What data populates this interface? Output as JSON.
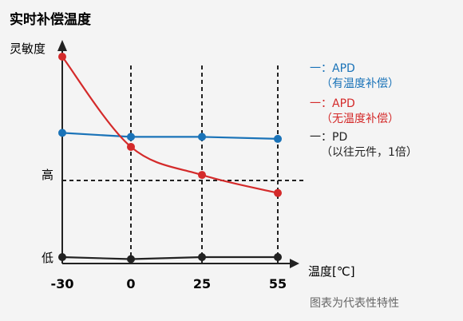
{
  "chart_data": {
    "type": "line",
    "title": "实时补偿温度",
    "ylabel": "灵敏度",
    "xlabel": "温度[℃]",
    "x": [
      "-30",
      "0",
      "25",
      "55"
    ],
    "y_tick_labels": [
      "高",
      "低"
    ],
    "y_scale": "qualitative",
    "grid": "dashed vertical lines at x = 0, 25, 55; dashed horizontal reference at 高",
    "legend_position": "right",
    "series": [
      {
        "name": "APD",
        "legend_line1": "一：APD",
        "legend_line2": "（有温度补偿）",
        "color": "#1a73b8",
        "values": [
          0.62,
          0.6,
          0.6,
          0.59
        ]
      },
      {
        "name": "APD",
        "legend_line1": "一：APD",
        "legend_line2": "（无温度补偿）",
        "color": "#d42a2a",
        "values": [
          1.0,
          0.55,
          0.41,
          0.32
        ]
      },
      {
        "name": "PD",
        "legend_line1": "一：PD",
        "legend_line2": "（以往元件，1倍）",
        "color": "#222222",
        "values": [
          0.0,
          -0.01,
          0.0,
          0.0
        ]
      }
    ],
    "caption": "图表为代表性特性"
  }
}
